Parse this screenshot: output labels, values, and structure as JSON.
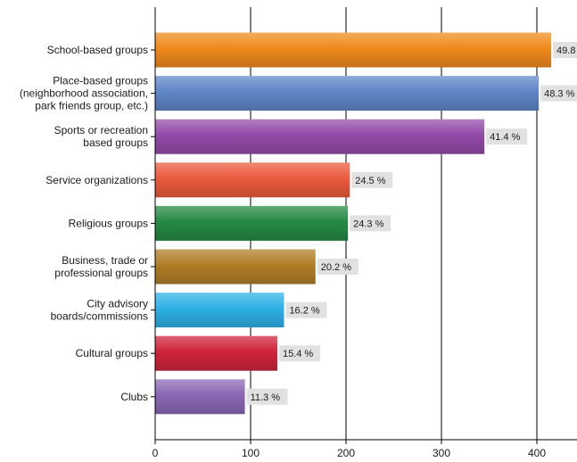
{
  "chart_data": {
    "type": "bar",
    "orientation": "horizontal",
    "categories": [
      [
        "School-based groups"
      ],
      [
        "Place-based groups",
        "(neighborhood association,",
        "park friends group, etc.)"
      ],
      [
        "Sports or recreation",
        "based groups"
      ],
      [
        "Service organizations"
      ],
      [
        "Religious groups"
      ],
      [
        "Business, trade or",
        "professional groups"
      ],
      [
        "City advisory",
        "boards/commissions"
      ],
      [
        "Cultural groups"
      ],
      [
        "Clubs"
      ]
    ],
    "values": [
      415,
      402,
      345,
      204,
      202,
      168,
      135,
      128,
      94
    ],
    "data_labels": [
      "49.8 %",
      "48.3 %",
      "41.4 %",
      "24.5 %",
      "24.3 %",
      "20.2 %",
      "16.2 %",
      "15.4 %",
      "11.3 %"
    ],
    "colors": [
      "#f08a1c",
      "#5f86c8",
      "#934aa8",
      "#eb5a3c",
      "#258a44",
      "#b17e27",
      "#2eb1e6",
      "#d0233a",
      "#8a68b4"
    ],
    "xlim": [
      0,
      440
    ],
    "x_ticks": [
      0,
      100,
      200,
      300,
      400
    ],
    "grid": "vertical"
  }
}
